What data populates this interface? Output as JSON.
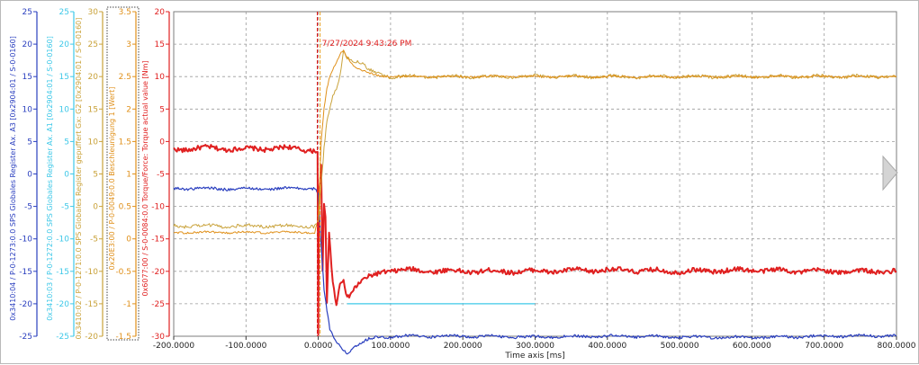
{
  "chart_data": {
    "type": "line",
    "xlabel": "Time axis [ms]",
    "xlim": [
      -200,
      800
    ],
    "x_ticks": [
      "-200.0000",
      "-100.0000",
      "0.0000",
      "100.0000",
      "200.0000",
      "300.0000",
      "400.0000",
      "500.0000",
      "600.0000",
      "700.0000",
      "800.0000"
    ],
    "grid": true,
    "cursor": {
      "x": 0,
      "label": "7/27/2024 9:43:26 PM",
      "color": "#e02020"
    },
    "y_axes": [
      {
        "label": "0x3410:04 / P-0-1273:0.0 SPS Globales Register Ax. A3 [0x2904:01 / S-0-0160]",
        "color": "#2a3fbf",
        "min": -25,
        "max": 25,
        "step": 5,
        "ticks": [
          "-25",
          "-20",
          "-15",
          "-10",
          "-5",
          "0",
          "5",
          "10",
          "15",
          "20",
          "25"
        ]
      },
      {
        "label": "0x3410:03 / P-0-1272:0.0 SPS Globales Register Ax. A1 [0x2904:01 / S-0-0160]",
        "color": "#3ec8e8",
        "min": -25,
        "max": 25,
        "step": 5,
        "ticks": [
          "-25",
          "-20",
          "-15",
          "-10",
          "-5",
          "0",
          "5",
          "10",
          "15",
          "20",
          "25"
        ]
      },
      {
        "label": "0x3410:02 / P-0-1271:0.0 SPS Globales Register gepuffert Gx: G2 [0x2904:01 / S-0-0160]",
        "color": "#c9a23a",
        "min": -20,
        "max": 30,
        "step": 5,
        "ticks": [
          "-20",
          "-15",
          "-10",
          "-5",
          "0",
          "5",
          "10",
          "15",
          "20",
          "25",
          "30"
        ]
      },
      {
        "label": "0x20E3:00 / P-0-0049:0.0 Beschleunigung 1 [Wert]",
        "color": "#e0901a",
        "min": -1.5,
        "max": 3.5,
        "step": 0.5,
        "ticks": [
          "-1.5",
          "-1",
          "-0.5",
          "0",
          "0.5",
          "1",
          "1.5",
          "2",
          "2.5",
          "3",
          "3.5"
        ]
      },
      {
        "label": "0x6077:00 / S-0-0084:0.0 Torque/Force: Torque actual value [Nm]",
        "color": "#e02020",
        "min": -30,
        "max": 20,
        "step": 5,
        "ticks": [
          "-30",
          "-25",
          "-20",
          "-15",
          "-10",
          "-5",
          "0",
          "5",
          "10",
          "15",
          "20"
        ]
      }
    ],
    "series": [
      {
        "color": "#e02020",
        "axis": 4,
        "width": 2.0,
        "noise": 0.35,
        "points": [
          [
            -200,
            -1.2
          ],
          [
            -150,
            -1.0
          ],
          [
            -100,
            -1.2
          ],
          [
            -50,
            -1.0
          ],
          [
            -5,
            -1.3
          ],
          [
            -1,
            -1.5
          ],
          [
            0,
            -30
          ],
          [
            1,
            -8
          ],
          [
            4,
            -4
          ],
          [
            6,
            -20
          ],
          [
            8,
            -10
          ],
          [
            10,
            -12
          ],
          [
            12,
            -25
          ],
          [
            15,
            -14
          ],
          [
            20,
            -22
          ],
          [
            25,
            -25
          ],
          [
            30,
            -22
          ],
          [
            35,
            -21
          ],
          [
            40,
            -24
          ],
          [
            50,
            -22.5
          ],
          [
            60,
            -21.5
          ],
          [
            70,
            -21
          ],
          [
            80,
            -20.5
          ],
          [
            90,
            -20
          ],
          [
            100,
            -19.8
          ],
          [
            200,
            -20
          ],
          [
            300,
            -20
          ],
          [
            400,
            -19.8
          ],
          [
            500,
            -20
          ],
          [
            600,
            -19.8
          ],
          [
            700,
            -20
          ],
          [
            800,
            -20
          ]
        ]
      },
      {
        "color": "#2a3fbf",
        "axis": 0,
        "width": 1.2,
        "noise": 0.2,
        "points": [
          [
            -200,
            -2.2
          ],
          [
            -100,
            -2.3
          ],
          [
            -5,
            -2.2
          ],
          [
            0,
            -3
          ],
          [
            4,
            -11
          ],
          [
            8,
            -18
          ],
          [
            12,
            -21
          ],
          [
            16,
            -24
          ],
          [
            20,
            -25
          ],
          [
            25,
            -26
          ],
          [
            30,
            -26.5
          ],
          [
            35,
            -27
          ],
          [
            40,
            -27.5
          ],
          [
            50,
            -26.5
          ],
          [
            60,
            -26
          ],
          [
            70,
            -25.5
          ],
          [
            80,
            -25.2
          ],
          [
            100,
            -25
          ],
          [
            200,
            -25
          ],
          [
            300,
            -25.1
          ],
          [
            400,
            -25
          ],
          [
            500,
            -25.1
          ],
          [
            600,
            -25.2
          ],
          [
            700,
            -25
          ],
          [
            800,
            -24.9
          ]
        ]
      },
      {
        "color": "#3ec8e8",
        "axis": 1,
        "width": 1.2,
        "noise": 0,
        "points": [
          [
            40,
            -20
          ],
          [
            200,
            -20
          ],
          [
            300,
            -20
          ]
        ]
      },
      {
        "color": "#c9a23a",
        "axis": 2,
        "width": 1.0,
        "noise": 0.25,
        "points": [
          [
            -200,
            -3
          ],
          [
            -100,
            -3
          ],
          [
            -5,
            -3
          ],
          [
            0,
            -2.5
          ],
          [
            4,
            3
          ],
          [
            8,
            9
          ],
          [
            12,
            13
          ],
          [
            16,
            15
          ],
          [
            20,
            17
          ],
          [
            25,
            18
          ],
          [
            30,
            20
          ],
          [
            35,
            24
          ],
          [
            40,
            23
          ],
          [
            50,
            22.5
          ],
          [
            60,
            22
          ],
          [
            70,
            21
          ],
          [
            80,
            20.5
          ],
          [
            100,
            20
          ],
          [
            200,
            20
          ],
          [
            300,
            20
          ],
          [
            400,
            20
          ],
          [
            500,
            20
          ],
          [
            600,
            20
          ],
          [
            700,
            20
          ],
          [
            800,
            20
          ]
        ]
      },
      {
        "color": "#e0901a",
        "axis": 3,
        "width": 1.0,
        "noise": 0.015,
        "points": [
          [
            -200,
            0.1
          ],
          [
            -100,
            0.1
          ],
          [
            -5,
            0.1
          ],
          [
            0,
            0.3
          ],
          [
            4,
            1.5
          ],
          [
            8,
            2.0
          ],
          [
            12,
            2.3
          ],
          [
            16,
            2.5
          ],
          [
            20,
            2.6
          ],
          [
            25,
            2.7
          ],
          [
            30,
            2.85
          ],
          [
            35,
            2.9
          ],
          [
            40,
            2.8
          ],
          [
            50,
            2.65
          ],
          [
            60,
            2.6
          ],
          [
            70,
            2.55
          ],
          [
            80,
            2.52
          ],
          [
            100,
            2.5
          ],
          [
            200,
            2.5
          ],
          [
            300,
            2.5
          ],
          [
            400,
            2.5
          ],
          [
            500,
            2.5
          ],
          [
            600,
            2.5
          ],
          [
            700,
            2.5
          ],
          [
            800,
            2.5
          ]
        ]
      }
    ]
  }
}
